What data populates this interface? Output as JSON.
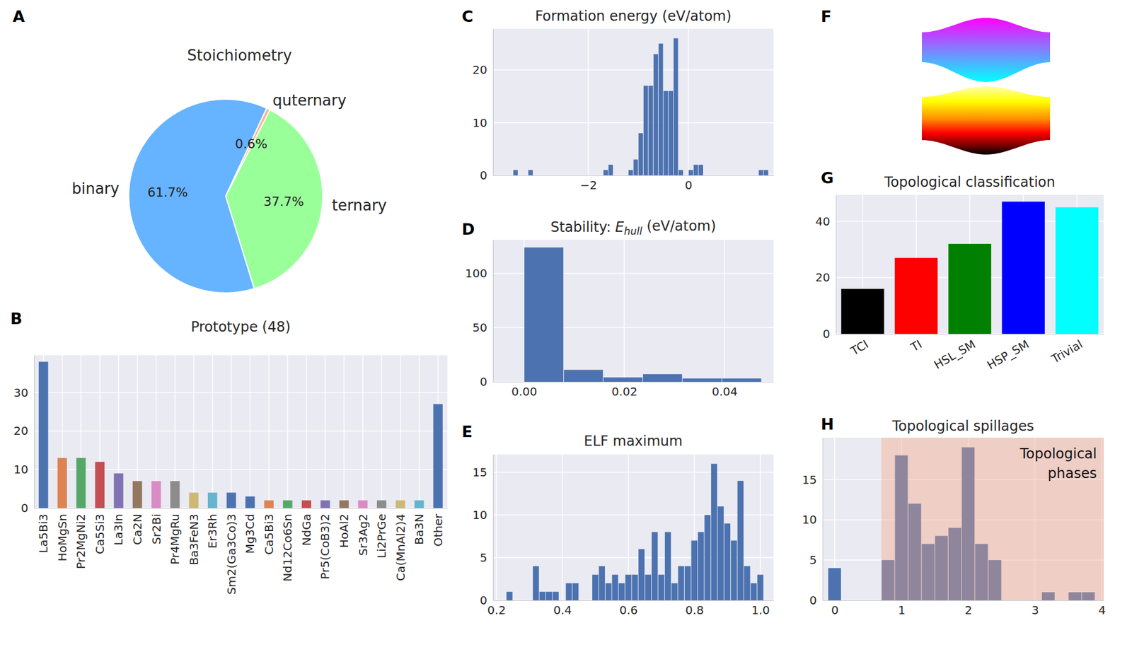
{
  "chart_data": [
    {
      "panel": "A",
      "type": "pie",
      "title": "Stoichiometry",
      "categories": [
        "binary",
        "ternary",
        "quternary"
      ],
      "values": [
        61.7,
        37.7,
        0.6
      ],
      "value_labels": [
        "61.7%",
        "37.7%",
        "0.6%"
      ],
      "colors": [
        "#66b3ff",
        "#99ff99",
        "#ffb38a"
      ],
      "data_labels": true
    },
    {
      "panel": "B",
      "type": "bar",
      "title": "Prototype (48)",
      "categories": [
        "La5Bi3",
        "HoMgSn",
        "Pr2MgNi2",
        "Ca5Si3",
        "La3In",
        "Ca2N",
        "Sr2Bi",
        "Pr4MgRu",
        "Ba3FeN3",
        "Er3Rh",
        "Sm2(Ga3Co)3",
        "Mg3Cd",
        "Ca5Bi3",
        "Nd12Co6Sn",
        "NdGa",
        "Pr5(CoB3)2",
        "HoAl2",
        "Sr3Ag2",
        "Li2PrGe",
        "Ca(MnAl2)4",
        "Ba3N",
        "Other"
      ],
      "values": [
        38,
        13,
        13,
        12,
        9,
        7,
        7,
        7,
        4,
        4,
        4,
        3,
        2,
        2,
        2,
        2,
        2,
        2,
        2,
        2,
        2,
        27
      ],
      "colors": [
        "#4c72b0",
        "#dd8452",
        "#55a868",
        "#c44e52",
        "#8172b3",
        "#937860",
        "#da8bc3",
        "#8c8c8c",
        "#ccb974",
        "#64b5cd",
        "#4c72b0",
        "#4c72b0",
        "#dd8452",
        "#55a868",
        "#c44e52",
        "#8172b3",
        "#937860",
        "#da8bc3",
        "#8c8c8c",
        "#ccb974",
        "#64b5cd",
        "#4c72b0"
      ],
      "ylim": [
        0,
        39.7
      ],
      "yticks": [
        0,
        10,
        20,
        30
      ],
      "grid": true
    },
    {
      "panel": "C",
      "type": "histogram",
      "title": "Formation energy (eV/atom)",
      "bins": [
        -3.5,
        -3.4,
        -3.3,
        -3.2,
        -3.1,
        -3.0,
        -2.9,
        -2.8,
        -2.7,
        -2.6,
        -2.5,
        -2.4,
        -2.3,
        -2.2,
        -2.1,
        -2.0,
        -1.9,
        -1.8,
        -1.7,
        -1.6,
        -1.5,
        -1.4,
        -1.3,
        -1.2,
        -1.1,
        -1.0,
        -0.9,
        -0.8,
        -0.7,
        -0.6,
        -0.5,
        -0.4,
        -0.3,
        -0.2,
        -0.1,
        0.0,
        0.1,
        0.2,
        0.3,
        0.4,
        0.5,
        0.6,
        0.7,
        0.8,
        0.9,
        1.0,
        1.1,
        1.2,
        1.3,
        1.4,
        1.5,
        1.6
      ],
      "values": [
        1,
        0,
        0,
        1,
        0,
        0,
        0,
        0,
        0,
        0,
        0,
        0,
        0,
        0,
        0,
        0,
        0,
        0,
        1,
        2,
        0,
        0,
        0,
        1,
        3,
        8,
        17,
        17,
        23,
        25,
        16,
        16,
        26,
        1,
        0,
        1,
        2,
        2,
        0,
        0,
        0,
        0,
        0,
        0,
        0,
        0,
        0,
        0,
        0,
        1,
        1
      ],
      "color": "#4c72b0",
      "xlim": [
        -3.9,
        1.7
      ],
      "xticks": [
        {
          "value": -2,
          "label": "−2"
        },
        0
      ],
      "ylim": [
        0,
        27.8
      ],
      "yticks": [
        0,
        10,
        20
      ],
      "grid": true
    },
    {
      "panel": "D",
      "type": "histogram",
      "title": [
        "Stability: ",
        "E",
        "hull",
        " (eV/atom)"
      ],
      "bins": [
        0,
        0.0079,
        0.0158,
        0.0237,
        0.0316,
        0.0395,
        0.0474
      ],
      "values": [
        124,
        11,
        4,
        7,
        3,
        3
      ],
      "color": "#4c72b0",
      "xlim": [
        -0.0062,
        0.0498
      ],
      "xticks": [
        {
          "value": 0,
          "label": "0.00"
        },
        {
          "value": 0.02,
          "label": "0.02"
        },
        {
          "value": 0.04,
          "label": "0.04"
        }
      ],
      "ylim": [
        0,
        131
      ],
      "yticks": [
        0,
        50,
        100
      ],
      "grid": true
    },
    {
      "panel": "E",
      "type": "histogram",
      "title": "ELF maximum",
      "bins": [
        0.23,
        0.25,
        0.27,
        0.29,
        0.31,
        0.33,
        0.35,
        0.37,
        0.39,
        0.41,
        0.43,
        0.45,
        0.47,
        0.49,
        0.51,
        0.53,
        0.55,
        0.57,
        0.59,
        0.61,
        0.63,
        0.65,
        0.67,
        0.69,
        0.71,
        0.73,
        0.75,
        0.77,
        0.79,
        0.81,
        0.83,
        0.85,
        0.87,
        0.89,
        0.91,
        0.93,
        0.95,
        0.97,
        0.99,
        1.01
      ],
      "values": [
        1,
        0,
        0,
        0,
        4,
        1,
        1,
        1,
        0,
        2,
        2,
        0,
        0,
        3,
        4,
        2,
        3,
        2,
        3,
        3,
        6,
        3,
        8,
        3,
        8,
        2,
        4,
        4,
        7,
        8,
        10,
        16,
        11,
        9,
        7,
        14,
        4,
        2,
        3
      ],
      "color": "#4c72b0",
      "xlim": [
        0.19,
        1.04
      ],
      "xticks": [
        0.2,
        0.4,
        0.6,
        0.8,
        {
          "value": 1,
          "label": "1.0"
        }
      ],
      "ylim": [
        0,
        17.1
      ],
      "yticks": [
        0,
        5,
        10,
        15
      ],
      "grid": true
    },
    {
      "panel": "F",
      "type": "diagram"
    },
    {
      "panel": "G",
      "type": "bar",
      "title": "Topological classification",
      "categories": [
        "TCI",
        "TI",
        "HSL_SM",
        "HSP_SM",
        "Trivial"
      ],
      "values": [
        16,
        27,
        32,
        47,
        45
      ],
      "colors": [
        "#000000",
        "#ff0000",
        "#008000",
        "#0000ff",
        "#00ffff"
      ],
      "ylim": [
        0,
        49.4
      ],
      "yticks": [
        0,
        20,
        40
      ],
      "grid": true
    },
    {
      "panel": "H",
      "type": "histogram",
      "title": "Topological spillages",
      "bins": [
        -0.1,
        0.1,
        0.3,
        0.5,
        0.7,
        0.9,
        1.1,
        1.3,
        1.5,
        1.7,
        1.9,
        2.1,
        2.3,
        2.5,
        2.7,
        2.9,
        3.1,
        3.3,
        3.5,
        3.7,
        3.9
      ],
      "values": [
        4,
        0,
        0,
        0,
        5,
        18,
        12,
        7,
        8,
        9,
        19,
        7,
        5,
        0,
        0,
        0,
        1,
        0,
        1,
        1
      ],
      "color": "#4c72b0",
      "xlim": [
        -0.18,
        4.03
      ],
      "xticks": [
        0,
        1,
        2,
        3,
        4
      ],
      "ylim": [
        0,
        20.2
      ],
      "yticks": [
        0,
        5,
        10,
        15
      ],
      "grid": true,
      "annotations": [
        {
          "text": "Topological phases",
          "x": [
            0.7,
            4.03
          ],
          "color": "#f4a582"
        }
      ]
    }
  ]
}
